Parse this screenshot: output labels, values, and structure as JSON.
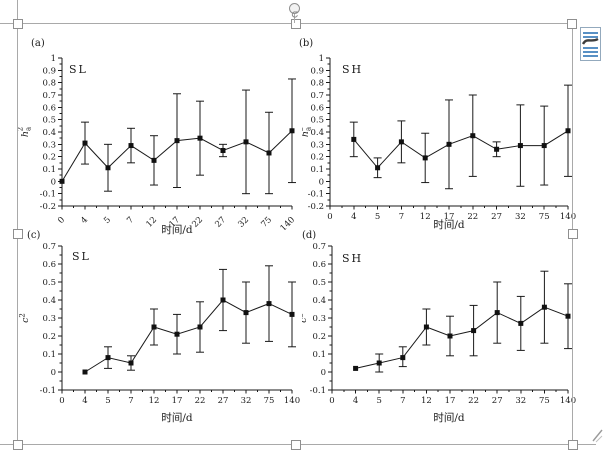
{
  "colors": {
    "ink": "#1a1a1a",
    "selection_line": "#a9a9a9",
    "handle_border": "#8f8f8f",
    "layout_icon_blue": "#2e74b5",
    "marker": "#111111"
  },
  "selection": {
    "rotation_handle_icon": "rotate-icon",
    "resize_handle_shape": "hollow-square",
    "handle_count": 8
  },
  "layout_button": {
    "icon": "layout-options-icon"
  },
  "chart_data": [
    {
      "id": "a",
      "type": "line",
      "panel": "(a)",
      "group_label": "SL",
      "xlabel": "时间/d",
      "ylabel": "h_a^2",
      "ylabel_parts": {
        "base": "h",
        "sub": "a",
        "sup": "2"
      },
      "ylim": [
        -0.2,
        1.0
      ],
      "ytick_step": 0.1,
      "x_tick_rotated": true,
      "categories": [
        "0",
        "4",
        "5",
        "7",
        "12",
        "17",
        "22",
        "27",
        "32",
        "75",
        "140"
      ],
      "values": [
        0.0,
        0.31,
        0.11,
        0.29,
        0.17,
        0.33,
        0.35,
        0.25,
        0.32,
        0.23,
        0.41
      ],
      "err_low": [
        null,
        0.14,
        -0.08,
        0.15,
        -0.03,
        -0.05,
        0.05,
        0.2,
        -0.1,
        -0.1,
        -0.01
      ],
      "err_high": [
        null,
        0.48,
        0.3,
        0.43,
        0.37,
        0.71,
        0.65,
        0.3,
        0.74,
        0.56,
        0.83
      ]
    },
    {
      "id": "b",
      "type": "line",
      "panel": "(b)",
      "group_label": "SH",
      "xlabel": "时间/d",
      "ylabel": "h_a^2",
      "ylabel_parts": {
        "base": "h",
        "sub": "a",
        "sup": "2"
      },
      "ylim": [
        -0.2,
        1.0
      ],
      "ytick_step": 0.1,
      "x_tick_rotated": false,
      "categories": [
        "0",
        "4",
        "5",
        "7",
        "12",
        "17",
        "22",
        "27",
        "32",
        "75",
        "140"
      ],
      "values": [
        null,
        0.34,
        0.11,
        0.32,
        0.19,
        0.3,
        0.37,
        0.26,
        0.29,
        0.29,
        0.41
      ],
      "err_low": [
        null,
        0.2,
        0.03,
        0.15,
        -0.01,
        -0.06,
        0.04,
        0.2,
        -0.04,
        -0.03,
        0.04
      ],
      "err_high": [
        null,
        0.48,
        0.19,
        0.49,
        0.39,
        0.66,
        0.7,
        0.32,
        0.62,
        0.61,
        0.78
      ]
    },
    {
      "id": "c",
      "type": "line",
      "panel": "(c)",
      "group_label": "SL",
      "xlabel": "时间/d",
      "ylabel": "c^2",
      "ylabel_parts": {
        "base": "c",
        "sub": "",
        "sup": "2"
      },
      "ylim": [
        -0.1,
        0.7
      ],
      "ytick_step": 0.1,
      "x_tick_rotated": false,
      "categories": [
        "0",
        "4",
        "5",
        "7",
        "12",
        "17",
        "22",
        "27",
        "32",
        "75",
        "140"
      ],
      "values": [
        null,
        0.0,
        0.08,
        0.05,
        0.25,
        0.21,
        0.25,
        0.4,
        0.33,
        0.38,
        0.32
      ],
      "err_low": [
        null,
        null,
        0.02,
        0.01,
        0.15,
        0.1,
        0.11,
        0.23,
        0.16,
        0.17,
        0.14
      ],
      "err_high": [
        null,
        null,
        0.14,
        0.09,
        0.35,
        0.32,
        0.39,
        0.57,
        0.5,
        0.59,
        0.5
      ]
    },
    {
      "id": "d",
      "type": "line",
      "panel": "(d)",
      "group_label": "SH",
      "xlabel": "时间/d",
      "ylabel": "c^2",
      "ylabel_parts": {
        "base": "c",
        "sub": "",
        "sup": "2"
      },
      "ylim": [
        -0.1,
        0.7
      ],
      "ytick_step": 0.1,
      "x_tick_rotated": false,
      "categories": [
        "0",
        "4",
        "5",
        "7",
        "12",
        "17",
        "22",
        "27",
        "32",
        "75",
        "140"
      ],
      "values": [
        null,
        0.02,
        0.05,
        0.08,
        0.25,
        0.2,
        0.23,
        0.33,
        0.27,
        0.36,
        0.31
      ],
      "err_low": [
        null,
        null,
        0.0,
        0.03,
        0.15,
        0.09,
        0.09,
        0.16,
        0.12,
        0.16,
        0.13
      ],
      "err_high": [
        null,
        null,
        0.1,
        0.14,
        0.35,
        0.31,
        0.37,
        0.5,
        0.42,
        0.56,
        0.49
      ]
    }
  ]
}
